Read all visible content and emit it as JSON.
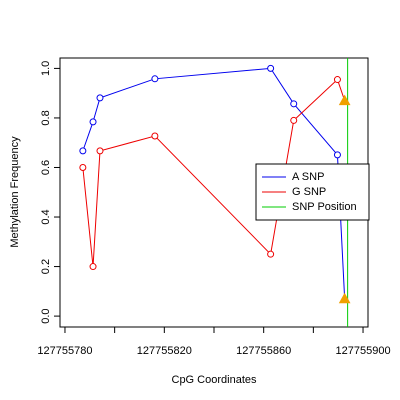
{
  "chart_data": {
    "type": "line",
    "x_label": "CpG Coordinates",
    "y_label": "Methylation Frequency",
    "xlim": [
      127755778,
      127755902
    ],
    "ylim": [
      -0.044,
      1.042
    ],
    "xticks": [
      {
        "value": 127755780,
        "label": "127755780"
      },
      {
        "value": 127755800,
        "label": null
      },
      {
        "value": 127755820,
        "label": "127755820"
      },
      {
        "value": 127755840,
        "label": null
      },
      {
        "value": 127755860,
        "label": "127755860"
      },
      {
        "value": 127755880,
        "label": null
      },
      {
        "value": 127755900,
        "label": "127755900"
      }
    ],
    "yticks": [
      {
        "value": 0,
        "label": "0.0"
      },
      0.2,
      0.4,
      0.6,
      0.8,
      {
        "value": 1,
        "label": "1.0"
      }
    ],
    "series": [
      {
        "name": "A SNP",
        "color": "#0000ee",
        "x": [
          127755787.2,
          127755791.3,
          127755794.1,
          127755816.2,
          127755862.8,
          127755872.1,
          127755889.7,
          127755892.6
        ],
        "values": [
          0.667,
          0.784,
          0.881,
          0.958,
          1.0,
          0.857,
          0.651,
          0.07
        ]
      },
      {
        "name": "G SNP",
        "color": "#ee0000",
        "x": [
          127755787.2,
          127755791.3,
          127755794.1,
          127755816.2,
          127755862.8,
          127755872.1,
          127755889.7,
          127755892.6
        ],
        "values": [
          0.6,
          0.2,
          0.667,
          0.727,
          0.25,
          0.79,
          0.955,
          0.87
        ]
      }
    ],
    "snp_position": {
      "name": "SNP Position",
      "color": "#00cc00",
      "x": 127755893.8
    },
    "snp_marker_color": "#f0a000"
  }
}
